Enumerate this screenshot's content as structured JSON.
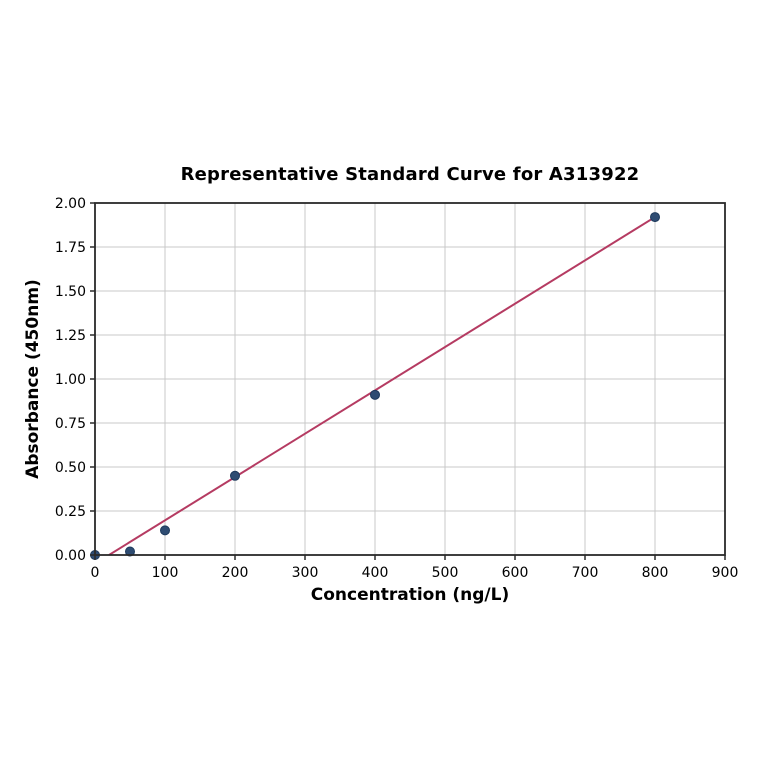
{
  "chart_data": {
    "type": "scatter",
    "title": "Representative Standard Curve for A313922",
    "xlabel": "Concentration (ng/L)",
    "ylabel": "Absorbance (450nm)",
    "xlim": [
      0,
      900
    ],
    "ylim": [
      0.0,
      2.0
    ],
    "x_ticks": [
      0,
      100,
      200,
      300,
      400,
      500,
      600,
      700,
      800,
      900
    ],
    "y_ticks": [
      0.0,
      0.25,
      0.5,
      0.75,
      1.0,
      1.25,
      1.5,
      1.75,
      2.0
    ],
    "y_tick_labels": [
      "0.00",
      "0.25",
      "0.50",
      "0.75",
      "1.00",
      "1.25",
      "1.50",
      "1.75",
      "2.00"
    ],
    "grid": true,
    "legend": "none",
    "points": [
      {
        "x": 0,
        "y": 0.0
      },
      {
        "x": 50,
        "y": 0.02
      },
      {
        "x": 100,
        "y": 0.14
      },
      {
        "x": 200,
        "y": 0.45
      },
      {
        "x": 400,
        "y": 0.91
      },
      {
        "x": 800,
        "y": 1.92
      }
    ],
    "trendline": {
      "type": "linear",
      "points": [
        [
          20,
          0.0
        ],
        [
          800,
          1.92
        ]
      ]
    },
    "colors": {
      "marker_fill": "#2e4c72",
      "marker_edge": "#1e3a5c",
      "trendline": "#b53b62",
      "grid": "#c9c9c9",
      "spine": "#2a2a2a",
      "tick": "#2a2a2a",
      "text": "#000000",
      "background": "#ffffff"
    }
  }
}
